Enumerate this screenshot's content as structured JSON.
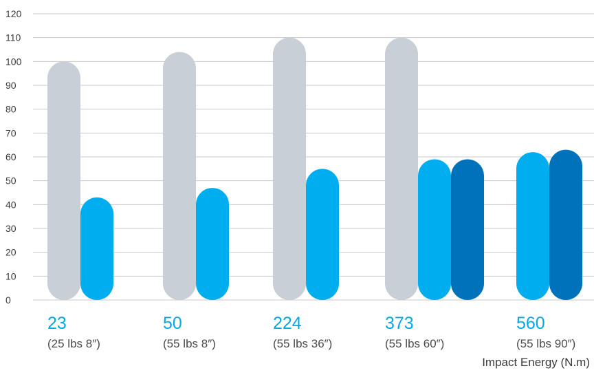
{
  "chart_data": {
    "type": "bar",
    "categories": [
      {
        "value": "23",
        "sub": "(25 lbs 8″)"
      },
      {
        "value": "50",
        "sub": "(55 lbs 8″)"
      },
      {
        "value": "224",
        "sub": "(55 lbs 36″)"
      },
      {
        "value": "373",
        "sub": "(55 lbs 60″)"
      },
      {
        "value": "560",
        "sub": "(55 lbs 90″)"
      }
    ],
    "series": [
      {
        "color": "#c9cfd6",
        "values": [
          100,
          104,
          110,
          110,
          null
        ]
      },
      {
        "color": "#00aeef",
        "values": [
          43,
          47,
          55,
          59,
          62
        ]
      },
      {
        "color": "#0071bb",
        "values": [
          null,
          null,
          null,
          59,
          63
        ]
      }
    ],
    "xlabel": "Impact Energy (N.m)",
    "ylabel": "",
    "ylim": [
      0,
      120
    ],
    "yticks": [
      0,
      10,
      20,
      30,
      40,
      50,
      60,
      70,
      80,
      90,
      100,
      110,
      120
    ],
    "grid": true,
    "legend": "none"
  }
}
